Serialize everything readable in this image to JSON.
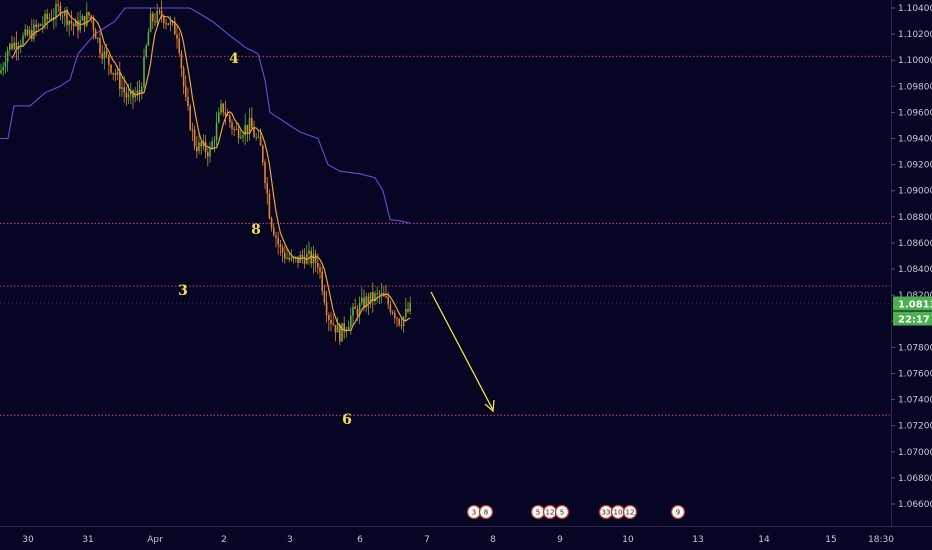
{
  "chart_data": {
    "type": "line",
    "symbol_hint": "price chart",
    "price_axis": {
      "ticks": [
        "1.10400",
        "1.10200",
        "1.10000",
        "1.09800",
        "1.09600",
        "1.09400",
        "1.09200",
        "1.09000",
        "1.08800",
        "1.08600",
        "1.08400",
        "1.08200",
        "1.08000",
        "1.07800",
        "1.07600",
        "1.07400",
        "1.07200",
        "1.07000",
        "1.06800",
        "1.06600"
      ],
      "range": [
        1.0645,
        1.105
      ]
    },
    "time_axis": {
      "ticks": [
        "30",
        "31",
        "Apr",
        "2",
        "3",
        "6",
        "7",
        "8",
        "9",
        "10",
        "13",
        "14",
        "15",
        "18:30"
      ]
    },
    "current_price": {
      "value": "1.08136",
      "color": "#4caf50"
    },
    "countdown": {
      "value": "22:17",
      "color": "#4caf50"
    },
    "levels": [
      {
        "price": 1.1003,
        "color": "#d24d6a"
      },
      {
        "price": 1.0875,
        "color": "#d24d6a"
      },
      {
        "price": 1.0827,
        "color": "#d24d6a"
      },
      {
        "price": 1.0728,
        "color": "#d24d6a"
      }
    ],
    "wave_labels": [
      "4",
      "8",
      "3",
      "6"
    ],
    "projection_arrow": {
      "from": [
        1.082,
        "Apr 6"
      ],
      "to": [
        1.0728,
        "Apr 8"
      ],
      "color": "#f2e14a"
    },
    "upper_band_color": "#6a4bd8",
    "ma_color": "#e8a33a",
    "candle_up_color": "#5fae3e",
    "candle_down_color": "#e0852e",
    "event_groups": [
      {
        "day": "7",
        "labels": [
          "3",
          "8"
        ]
      },
      {
        "day": "8-9",
        "labels": [
          "5",
          "12",
          "5"
        ]
      },
      {
        "day": "9-10",
        "labels": [
          "33",
          "10",
          "12"
        ]
      },
      {
        "day": "13",
        "labels": [
          "9"
        ]
      }
    ]
  }
}
